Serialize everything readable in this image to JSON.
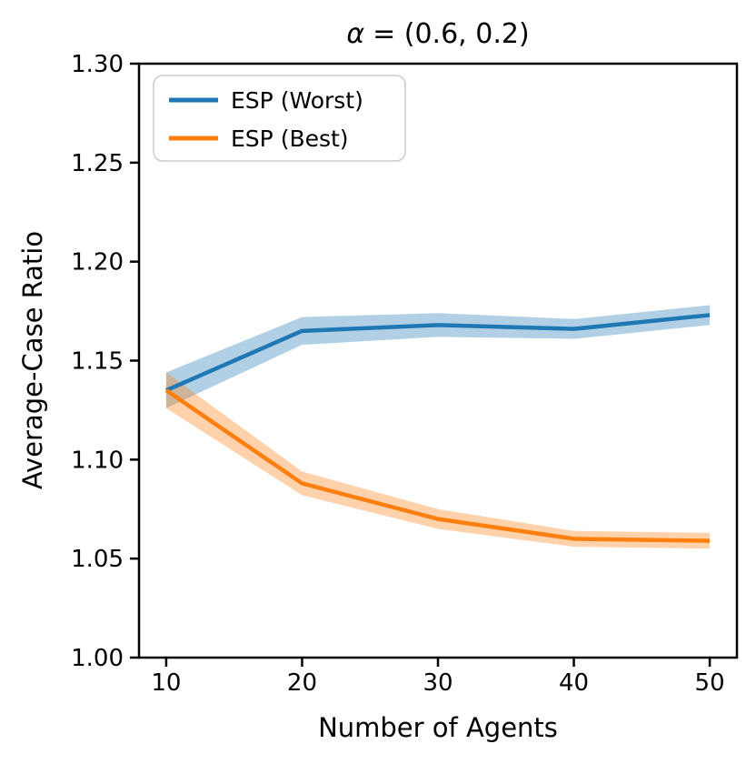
{
  "chart_data": {
    "type": "line",
    "title": "α = (0.6, 0.2)",
    "title_parts": {
      "alpha": "α",
      "rest": "= (0.6, 0.2)"
    },
    "x_axis": {
      "label": "Number of Agents",
      "lim": [
        8,
        52
      ],
      "tick_values": [
        10,
        20,
        30,
        40,
        50
      ],
      "tick_labels": [
        "10",
        "20",
        "30",
        "40",
        "50"
      ]
    },
    "y_axis": {
      "label": "Average-Case Ratio",
      "lim": [
        1.0,
        1.3
      ],
      "tick_values": [
        1.0,
        1.05,
        1.1,
        1.15,
        1.2,
        1.25,
        1.3
      ],
      "tick_labels": [
        "1.00",
        "1.05",
        "1.10",
        "1.15",
        "1.20",
        "1.25",
        "1.30"
      ]
    },
    "x": [
      10,
      20,
      30,
      40,
      50
    ],
    "series": [
      {
        "name": "ESP (Worst)",
        "color": "#1f77b4",
        "values": [
          1.135,
          1.165,
          1.168,
          1.166,
          1.173
        ],
        "band_lower": [
          1.126,
          1.158,
          1.162,
          1.161,
          1.168
        ],
        "band_upper": [
          1.144,
          1.172,
          1.174,
          1.171,
          1.178
        ]
      },
      {
        "name": "ESP (Best)",
        "color": "#ff7f0e",
        "values": [
          1.135,
          1.088,
          1.07,
          1.06,
          1.059
        ],
        "band_lower": [
          1.126,
          1.082,
          1.065,
          1.056,
          1.055
        ],
        "band_upper": [
          1.144,
          1.094,
          1.075,
          1.064,
          1.063
        ]
      }
    ],
    "band_opacity": 0.35,
    "legend": {
      "position": "upper-left",
      "border_color": "#cccccc",
      "background": "#ffffff"
    },
    "axis_color": "#000000",
    "grid": false,
    "figure_background": "#ffffff"
  }
}
